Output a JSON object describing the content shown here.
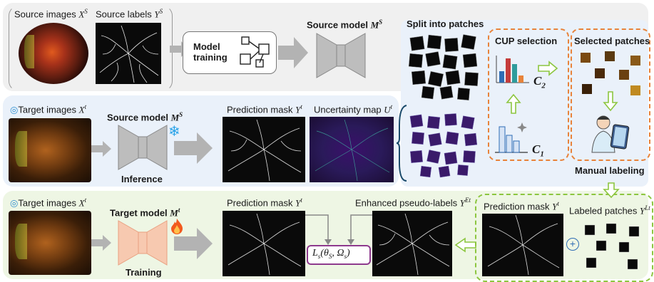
{
  "row1": {
    "source_images_label": "Source images ",
    "source_images_sym": "X",
    "source_images_sup": "S",
    "source_labels_label": "Source labels ",
    "source_labels_sym": "Y",
    "source_labels_sup": "S",
    "model_training_line1": "Model",
    "model_training_line2": "training",
    "source_model_label": "Source model ",
    "source_model_sym": "M",
    "source_model_sup": "S"
  },
  "row2": {
    "target_images_label": "Target images ",
    "target_images_sym": "X",
    "target_images_sup": "t",
    "source_model_label": "Source model ",
    "source_model_sym": "M",
    "source_model_sup": "S",
    "inference_label": "Inference",
    "prediction_mask_label": "Prediction mask ",
    "prediction_mask_sym": "Y",
    "prediction_mask_sup": "t",
    "uncertainty_map_label": "Uncertainty map ",
    "uncertainty_map_sym": "U",
    "uncertainty_map_sup": "t"
  },
  "patches": {
    "split_label": "Split into patches",
    "cup_selection_label": "CUP selection",
    "c2_sym": "C",
    "c2_sub": "2",
    "c1_sym": "C",
    "c1_sub": "1",
    "selected_patches_label": "Selected patches",
    "manual_labeling_label": "Manual labeling"
  },
  "row3": {
    "target_images_label": "Target images ",
    "target_images_sym": "X",
    "target_images_sup": "t",
    "target_model_label": "Target model ",
    "target_model_sym": "M",
    "target_model_sup": "t",
    "training_label": "Training",
    "prediction_mask_label": "Prediction mask ",
    "prediction_mask_sym": "Y",
    "prediction_mask_sup": "t",
    "loss_label": "L",
    "loss_sub": "s",
    "loss_args": "(θ",
    "loss_args_sub1": "S",
    "loss_args_mid": ", Ω",
    "loss_args_sub2": "s",
    "loss_args_end": ")",
    "enhanced_label": "Enhanced pseudo-labels ",
    "enhanced_sym": "Y",
    "enhanced_sup": "Et",
    "prediction_mask2_label": "Prediction mask ",
    "prediction_mask2_sym": "Y",
    "prediction_mask2_sup": "t",
    "labeled_patches_label": "Labeled patches ",
    "labeled_patches_sym": "Y",
    "labeled_patches_sup": "Lt",
    "plus_symbol": "+"
  },
  "colors": {
    "row1_bg": "#f0f0f0",
    "row2_bg": "#eaf1fa",
    "row3_bg": "#eef6e4",
    "cup_border": "#e8833a",
    "green_border": "#8cc63f",
    "arrow_gray": "#b3b3b3",
    "model_gray": "#bdbdbd",
    "model_peach": "#f7c9b0",
    "loss_border": "#8e3a8e",
    "snow_icon": "#2aa3e8",
    "fire_icon": "#f25a1d",
    "bar_chart_colors": [
      "#2f6db5",
      "#e8833a",
      "#2e9c9c",
      "#c43c3c"
    ]
  },
  "icons": {
    "brain": "brain-icon",
    "snowflake": "snowflake-icon",
    "fire": "fire-icon",
    "sparkles": "sparkles-icon",
    "doctor": "doctor-labeling-icon"
  }
}
